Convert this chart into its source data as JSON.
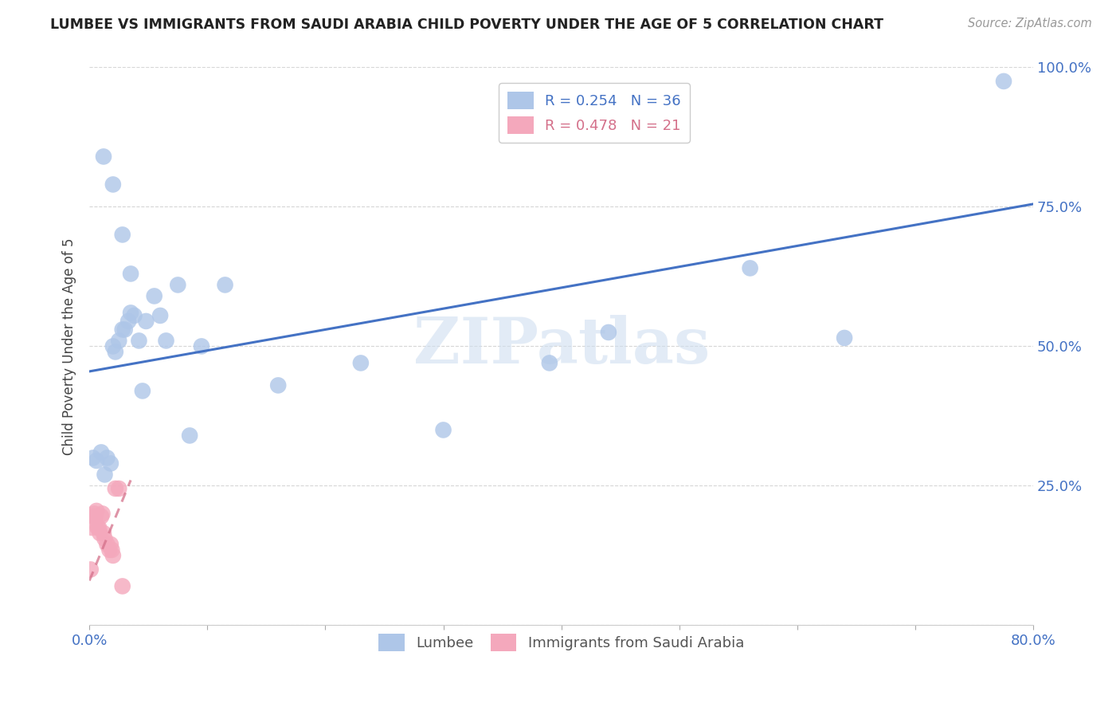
{
  "title": "LUMBEE VS IMMIGRANTS FROM SAUDI ARABIA CHILD POVERTY UNDER THE AGE OF 5 CORRELATION CHART",
  "source": "Source: ZipAtlas.com",
  "ylabel": "Child Poverty Under the Age of 5",
  "xlim": [
    0.0,
    0.8
  ],
  "ylim": [
    0.0,
    1.0
  ],
  "xtick_positions": [
    0.0,
    0.1,
    0.2,
    0.3,
    0.4,
    0.5,
    0.6,
    0.7,
    0.8
  ],
  "xticklabels": [
    "0.0%",
    "",
    "",
    "",
    "",
    "",
    "",
    "",
    "80.0%"
  ],
  "ytick_positions": [
    0.0,
    0.25,
    0.5,
    0.75,
    1.0
  ],
  "yticklabels": [
    "",
    "25.0%",
    "50.0%",
    "75.0%",
    "100.0%"
  ],
  "lumbee_x": [
    0.003,
    0.006,
    0.01,
    0.013,
    0.015,
    0.018,
    0.02,
    0.022,
    0.025,
    0.028,
    0.03,
    0.033,
    0.035,
    0.038,
    0.042,
    0.048,
    0.055,
    0.065,
    0.075,
    0.085,
    0.095,
    0.115,
    0.16,
    0.23,
    0.3,
    0.39,
    0.44,
    0.56,
    0.64,
    0.775,
    0.012,
    0.02,
    0.028,
    0.035,
    0.045,
    0.06
  ],
  "lumbee_y": [
    0.3,
    0.295,
    0.31,
    0.27,
    0.3,
    0.29,
    0.5,
    0.49,
    0.51,
    0.53,
    0.53,
    0.545,
    0.56,
    0.555,
    0.51,
    0.545,
    0.59,
    0.51,
    0.61,
    0.34,
    0.5,
    0.61,
    0.43,
    0.47,
    0.35,
    0.47,
    0.525,
    0.64,
    0.515,
    0.975,
    0.84,
    0.79,
    0.7,
    0.63,
    0.42,
    0.555
  ],
  "saudi_x": [
    0.001,
    0.002,
    0.003,
    0.004,
    0.005,
    0.006,
    0.007,
    0.008,
    0.009,
    0.01,
    0.011,
    0.012,
    0.013,
    0.015,
    0.017,
    0.018,
    0.019,
    0.02,
    0.022,
    0.025,
    0.028
  ],
  "saudi_y": [
    0.1,
    0.175,
    0.195,
    0.2,
    0.195,
    0.205,
    0.175,
    0.175,
    0.165,
    0.195,
    0.2,
    0.165,
    0.155,
    0.145,
    0.135,
    0.145,
    0.135,
    0.125,
    0.245,
    0.245,
    0.07
  ],
  "lumbee_R": 0.254,
  "lumbee_N": 36,
  "saudi_R": 0.478,
  "saudi_N": 21,
  "lumbee_color": "#aec6e8",
  "saudi_color": "#f4a8bc",
  "lumbee_line_color": "#4472c4",
  "saudi_line_color": "#d4708a",
  "axis_color": "#4472c4",
  "watermark_color": "#d0dff0",
  "grid_color": "#cccccc",
  "background_color": "#ffffff",
  "lumbee_label": "Lumbee",
  "saudi_label": "Immigrants from Saudi Arabia",
  "watermark": "ZIPatlas"
}
